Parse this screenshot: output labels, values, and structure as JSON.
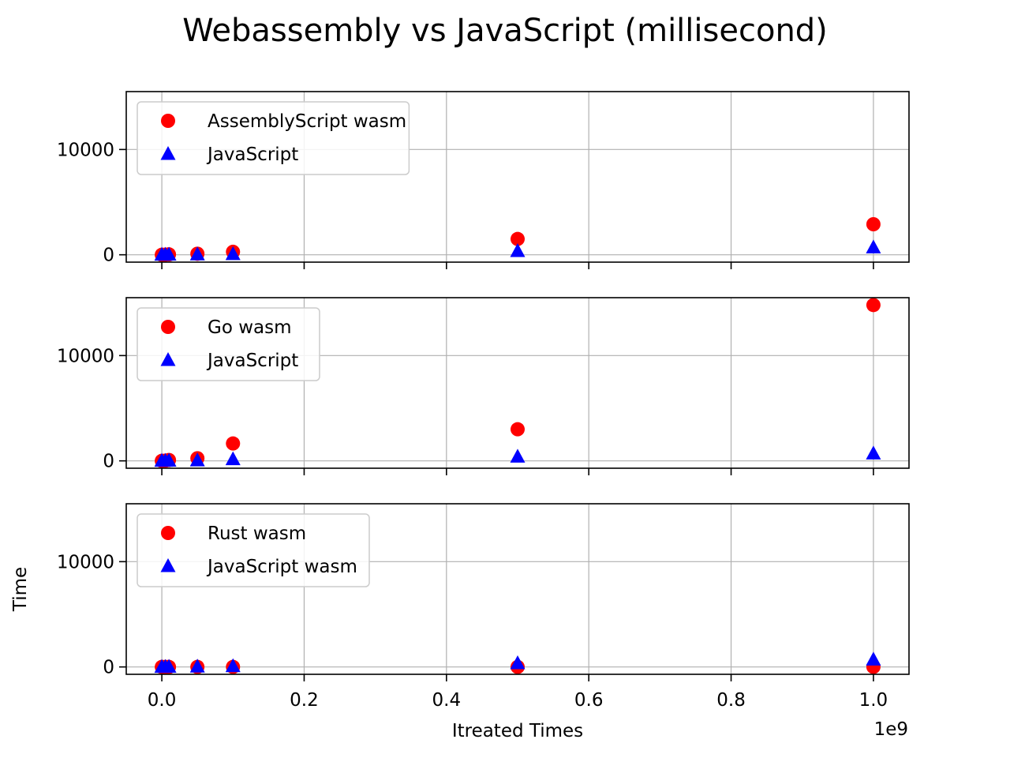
{
  "chart_data": {
    "type": "scatter",
    "title": "Webassembly vs JavaScript (millisecond)",
    "xlabel": "Itreated Times",
    "ylabel": "Time",
    "x_offset_label": "1e9",
    "xlim": [
      -0.05,
      1.05
    ],
    "ylim": [
      -700,
      15500
    ],
    "x_ticks": [
      0.0,
      0.2,
      0.4,
      0.6,
      0.8,
      1.0
    ],
    "x_tick_labels": [
      "0.0",
      "0.2",
      "0.4",
      "0.6",
      "0.8",
      "1.0"
    ],
    "y_ticks": [
      0,
      10000
    ],
    "y_tick_labels": [
      "0",
      "10000"
    ],
    "grid": true,
    "legend_position": "top-left",
    "panels": [
      {
        "series": [
          {
            "name": "AssemblyScript wasm",
            "marker": "circle",
            "color": "#ff0000",
            "x": [
              0.0,
              0.005,
              0.01,
              0.05,
              0.1,
              0.5,
              1.0
            ],
            "y": [
              0,
              10,
              40,
              100,
              280,
              1500,
              2900
            ]
          },
          {
            "name": "JavaScript",
            "marker": "triangle",
            "color": "#0000ff",
            "x": [
              0.0,
              0.005,
              0.01,
              0.05,
              0.1,
              0.5,
              1.0
            ],
            "y": [
              0,
              5,
              10,
              30,
              60,
              350,
              700
            ]
          }
        ]
      },
      {
        "series": [
          {
            "name": "Go wasm",
            "marker": "circle",
            "color": "#ff0000",
            "x": [
              0.0,
              0.005,
              0.01,
              0.05,
              0.1,
              0.5,
              1.0
            ],
            "y": [
              0,
              20,
              80,
              250,
              1650,
              3000,
              14800
            ]
          },
          {
            "name": "JavaScript",
            "marker": "triangle",
            "color": "#0000ff",
            "x": [
              0.0,
              0.005,
              0.01,
              0.05,
              0.1,
              0.5,
              1.0
            ],
            "y": [
              0,
              5,
              10,
              40,
              150,
              400,
              700
            ]
          }
        ]
      },
      {
        "series": [
          {
            "name": "Rust wasm",
            "marker": "circle",
            "color": "#ff0000",
            "x": [
              0.0,
              0.005,
              0.01,
              0.05,
              0.1,
              0.5,
              1.0
            ],
            "y": [
              0,
              0,
              0,
              0,
              0,
              0,
              0
            ]
          },
          {
            "name": "JavaScript wasm",
            "marker": "triangle",
            "color": "#0000ff",
            "x": [
              0.0,
              0.005,
              0.01,
              0.05,
              0.1,
              0.5,
              1.0
            ],
            "y": [
              0,
              5,
              10,
              30,
              70,
              350,
              700
            ]
          }
        ]
      }
    ]
  }
}
